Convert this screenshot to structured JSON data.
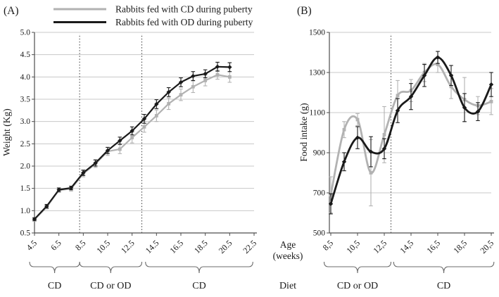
{
  "figure": {
    "panel_a_label": "(A)",
    "panel_b_label": "(B)",
    "age_label": "Age",
    "weeks_label": "(weeks)",
    "diet_label": "Diet"
  },
  "legend": {
    "position": "top-left",
    "items": [
      {
        "label": "Rabbits fed with CD during puberty",
        "color": "#b2b2b2"
      },
      {
        "label": "Rabbits fed with OD during puberty",
        "color": "#1a1a1a"
      }
    ]
  },
  "colors": {
    "cd_gray": "#b2b2b2",
    "od_black": "#1a1a1a",
    "gridline": "#c8c8c8",
    "axis": "#4d4d4d",
    "brace": "#6b6b6b",
    "dashed_line": "#3a3a3a"
  },
  "chart_data": [
    {
      "type": "line",
      "panel": "A",
      "ylabel": "Weight (Kg)",
      "xlabel": "Age (weeks)",
      "xlim": [
        4.5,
        22.5
      ],
      "ylim": [
        0.5,
        5.0
      ],
      "grid": true,
      "smooth": false,
      "yticks": [
        0.5,
        1.0,
        1.5,
        2.0,
        2.5,
        3.0,
        3.5,
        4.0,
        4.5,
        5.0
      ],
      "yticklabels": [
        "0.5",
        "1.0",
        "1.5",
        "2.0",
        "2.5",
        "3.0",
        "3.5",
        "4.0",
        "4.5",
        "5.0"
      ],
      "xticks": [
        4.5,
        6.5,
        8.5,
        10.5,
        12.5,
        14.5,
        16.5,
        18.5,
        20.5,
        22.5
      ],
      "xticklabels": [
        "4.5",
        "6.5",
        "8.5",
        "10.5",
        "12.5",
        "14.5",
        "16.5",
        "18.5",
        "20.5",
        "22.5"
      ],
      "x": [
        4.5,
        5.5,
        6.5,
        7.5,
        8.5,
        9.5,
        10.5,
        11.5,
        12.5,
        13.5,
        14.5,
        15.5,
        16.5,
        17.5,
        18.5,
        19.5,
        20.5
      ],
      "series": [
        {
          "name": "Rabbits fed with CD during puberty",
          "color": "#b2b2b2",
          "marker": "square",
          "values": [
            0.8,
            1.08,
            1.46,
            1.49,
            1.83,
            2.05,
            2.33,
            2.38,
            2.64,
            2.88,
            3.13,
            3.4,
            3.6,
            3.78,
            3.92,
            4.05,
            4.0
          ],
          "errors": [
            0.04,
            0.04,
            0.05,
            0.05,
            0.07,
            0.08,
            0.09,
            0.1,
            0.12,
            0.12,
            0.13,
            0.13,
            0.13,
            0.13,
            0.12,
            0.1,
            0.12
          ]
        },
        {
          "name": "Rabbits fed with OD during puberty",
          "color": "#1a1a1a",
          "marker": "diamond",
          "values": [
            0.81,
            1.1,
            1.47,
            1.51,
            1.85,
            2.07,
            2.35,
            2.57,
            2.79,
            3.06,
            3.39,
            3.66,
            3.88,
            4.02,
            4.07,
            4.23,
            4.22
          ],
          "errors": [
            0.03,
            0.04,
            0.04,
            0.04,
            0.06,
            0.07,
            0.07,
            0.08,
            0.09,
            0.1,
            0.1,
            0.1,
            0.1,
            0.1,
            0.09,
            0.1,
            0.1
          ]
        }
      ],
      "dashed_vlines": [
        8.2,
        13.3
      ],
      "diet_braces": [
        {
          "label": "CD",
          "from": 4.1,
          "to": 8.2
        },
        {
          "label": "CD or OD",
          "from": 8.2,
          "to": 13.3
        },
        {
          "label": "CD",
          "from": 13.6,
          "to": 22.4
        }
      ]
    },
    {
      "type": "line",
      "panel": "B",
      "ylabel": "Food intake (g)",
      "xlabel": "Age (weeks)",
      "xlim": [
        8.5,
        20.5
      ],
      "ylim": [
        500,
        1500
      ],
      "grid": true,
      "smooth": true,
      "yticks": [
        500,
        700,
        900,
        1100,
        1300,
        1500
      ],
      "yticklabels": [
        "500",
        "700",
        "900",
        "1100",
        "1300",
        "1500"
      ],
      "xticks": [
        8.5,
        10.5,
        12.5,
        14.5,
        16.5,
        18.5,
        20.5
      ],
      "xticklabels": [
        "8,5",
        "10,5",
        "12,5",
        "14,5",
        "16,5",
        "18,5",
        "20,5"
      ],
      "x": [
        8.5,
        9.5,
        10.5,
        11.5,
        12.5,
        13.5,
        14.5,
        15.5,
        16.5,
        17.5,
        18.5,
        19.5,
        20.5
      ],
      "series": [
        {
          "name": "Rabbits fed with CD during puberty",
          "color": "#b2b2b2",
          "marker": "square",
          "values": [
            690,
            1015,
            1065,
            800,
            990,
            1185,
            1210,
            1300,
            1340,
            1230,
            1165,
            1135,
            1155
          ],
          "errors": [
            90,
            40,
            30,
            165,
            140,
            75,
            55,
            45,
            40,
            60,
            110,
            45,
            65
          ]
        },
        {
          "name": "Rabbits fed with OD during puberty",
          "color": "#1a1a1a",
          "marker": "diamond",
          "values": [
            645,
            855,
            975,
            905,
            920,
            1110,
            1180,
            1285,
            1375,
            1285,
            1125,
            1105,
            1240
          ],
          "errors": [
            50,
            45,
            55,
            75,
            50,
            60,
            65,
            55,
            30,
            50,
            70,
            45,
            60
          ]
        }
      ],
      "dashed_vlines": [
        13.0
      ],
      "diet_braces": [
        {
          "label": "CD or OD",
          "from": 8.0,
          "to": 13.0
        },
        {
          "label": "CD",
          "from": 13.2,
          "to": 20.7
        }
      ]
    }
  ]
}
